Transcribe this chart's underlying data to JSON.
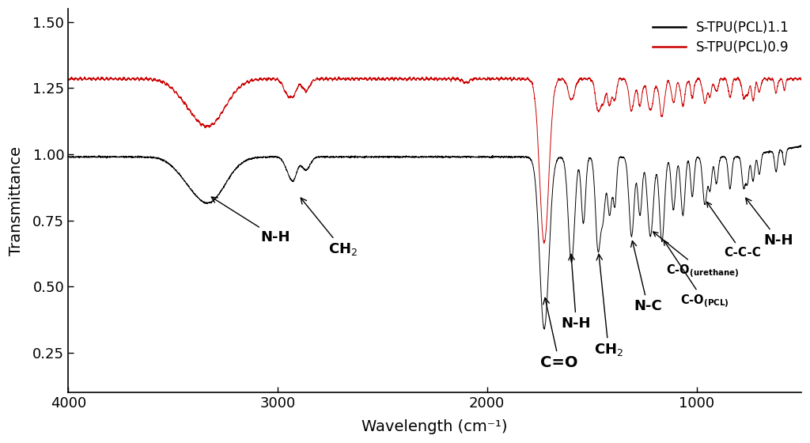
{
  "xlabel": "Wavelength (cm⁻¹)",
  "ylabel": "Transmittance",
  "xlim": [
    4000,
    500
  ],
  "ylim": [
    0.1,
    1.55
  ],
  "yticks": [
    0.25,
    0.5,
    0.75,
    1.0,
    1.25,
    1.5
  ],
  "xticks": [
    4000,
    3000,
    2000,
    1000
  ],
  "legend1": "S-TPU(PCL)1.1",
  "legend2": "S-TPU(PCL)0.9",
  "color1": "#000000",
  "color2": "#cc0000",
  "background": "#ffffff"
}
